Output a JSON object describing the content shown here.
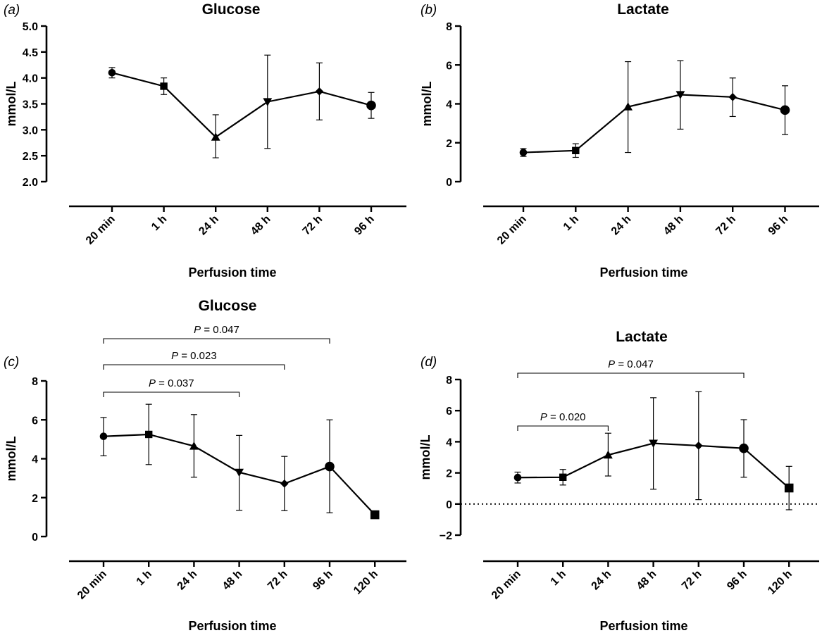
{
  "chart_data": [
    {
      "panel": "(a)",
      "type": "line",
      "title": "Glucose",
      "ylabel": "mmol/L",
      "xlabel": "Perfusion time",
      "categories": [
        "20 min",
        "1 h",
        "24 h",
        "48 h",
        "72 h",
        "96 h"
      ],
      "values": [
        4.1,
        3.84,
        2.86,
        3.54,
        3.74,
        3.47
      ],
      "error_low": [
        4.0,
        3.68,
        2.46,
        2.64,
        3.19,
        3.22
      ],
      "error_high": [
        4.2,
        4.0,
        3.29,
        4.44,
        4.29,
        3.72
      ],
      "markers": [
        "circle",
        "square",
        "triangle-up",
        "triangle-down",
        "diamond",
        "circle-large"
      ],
      "ylim": [
        2.0,
        5.0
      ],
      "yticks": [
        "2.0",
        "2.5",
        "3.0",
        "3.5",
        "4.0",
        "4.5",
        "5.0"
      ],
      "comparisons": []
    },
    {
      "panel": "(b)",
      "type": "line",
      "title": "Lactate",
      "ylabel": "mmol/L",
      "xlabel": "Perfusion time",
      "categories": [
        "20 min",
        "1 h",
        "24 h",
        "48 h",
        "72 h",
        "96 h"
      ],
      "values": [
        1.5,
        1.6,
        3.85,
        4.47,
        4.35,
        3.68
      ],
      "error_low": [
        1.3,
        1.25,
        1.5,
        2.7,
        3.35,
        2.42
      ],
      "error_high": [
        1.7,
        1.95,
        6.17,
        6.22,
        5.33,
        4.93
      ],
      "markers": [
        "circle",
        "square",
        "triangle-up",
        "triangle-down",
        "diamond",
        "circle-large"
      ],
      "ylim": [
        0,
        8
      ],
      "yticks": [
        "0",
        "2",
        "4",
        "6",
        "8"
      ],
      "comparisons": []
    },
    {
      "panel": "(c)",
      "type": "line",
      "title": "Glucose",
      "ylabel": "mmol/L",
      "xlabel": "Perfusion time",
      "categories": [
        "20 min",
        "1 h",
        "24 h",
        "48 h",
        "72 h",
        "96 h",
        "120 h"
      ],
      "values": [
        5.15,
        5.25,
        4.65,
        3.3,
        2.72,
        3.6,
        1.12
      ],
      "error_low": [
        4.15,
        3.7,
        3.05,
        1.35,
        1.33,
        1.22,
        null
      ],
      "error_high": [
        6.12,
        6.8,
        6.27,
        5.2,
        4.12,
        6.0,
        null
      ],
      "markers": [
        "circle",
        "square",
        "triangle-up",
        "triangle-down",
        "diamond",
        "circle-large",
        "square-large"
      ],
      "ylim": [
        0,
        8
      ],
      "yticks": [
        "0",
        "2",
        "4",
        "6",
        "8"
      ],
      "comparisons": [
        {
          "from": 0,
          "to": 3,
          "label": "P = 0.037"
        },
        {
          "from": 0,
          "to": 4,
          "label": "P = 0.023"
        },
        {
          "from": 0,
          "to": 5,
          "label": "P = 0.047"
        }
      ]
    },
    {
      "panel": "(d)",
      "type": "line",
      "title": "Lactate",
      "ylabel": "mmol/L",
      "xlabel": "Perfusion time",
      "categories": [
        "20 min",
        "1 h",
        "24 h",
        "48 h",
        "72 h",
        "96 h",
        "120 h"
      ],
      "values": [
        1.7,
        1.72,
        3.15,
        3.9,
        3.75,
        3.58,
        1.03
      ],
      "error_low": [
        1.35,
        1.22,
        1.8,
        0.95,
        0.28,
        1.72,
        -0.37
      ],
      "error_high": [
        2.05,
        2.22,
        4.55,
        6.83,
        7.22,
        5.42,
        2.42
      ],
      "markers": [
        "circle",
        "square",
        "triangle-up",
        "triangle-down",
        "diamond",
        "circle-large",
        "square-large"
      ],
      "ylim": [
        -2,
        8
      ],
      "yticks": [
        "-2",
        "0",
        "2",
        "4",
        "6",
        "8"
      ],
      "zero_line": true,
      "comparisons": [
        {
          "from": 0,
          "to": 2,
          "label": "P = 0.020"
        },
        {
          "from": 0,
          "to": 5,
          "label": "P = 0.047"
        }
      ]
    }
  ]
}
